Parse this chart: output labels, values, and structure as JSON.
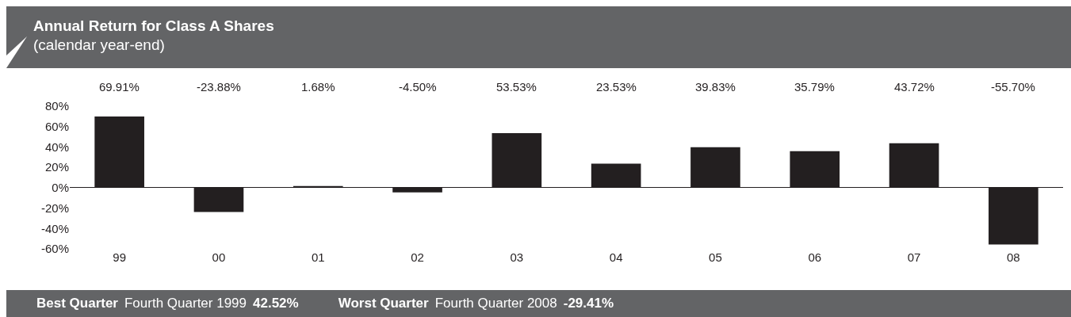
{
  "chart_data": {
    "type": "bar",
    "title": "Annual Return for Class A Shares",
    "subtitle": "(calendar year-end)",
    "categories": [
      "99",
      "00",
      "01",
      "02",
      "03",
      "04",
      "05",
      "06",
      "07",
      "08"
    ],
    "values": [
      69.91,
      -23.88,
      1.68,
      -4.5,
      53.53,
      23.53,
      39.83,
      35.79,
      43.72,
      -55.7
    ],
    "value_labels": [
      "69.91%",
      "-23.88%",
      "1.68%",
      "-4.50%",
      "53.53%",
      "23.53%",
      "39.83%",
      "35.79%",
      "43.72%",
      "-55.70%"
    ],
    "color": "#231f20",
    "ylim": [
      -60,
      80
    ],
    "yticks": [
      {
        "value": 80,
        "label": "80%"
      },
      {
        "value": 60,
        "label": "60%"
      },
      {
        "value": 40,
        "label": "40%"
      },
      {
        "value": 20,
        "label": "20%"
      },
      {
        "value": 0,
        "label": "0%"
      },
      {
        "value": -20,
        "label": "-20%"
      },
      {
        "value": -40,
        "label": "-40%"
      },
      {
        "value": -60,
        "label": "-60%"
      }
    ],
    "annotations": [
      "Best Quarter",
      "Fourth Quarter 1999",
      "42.52%",
      "Worst Quarter",
      "Fourth Quarter 2008",
      "-29.41%"
    ]
  }
}
